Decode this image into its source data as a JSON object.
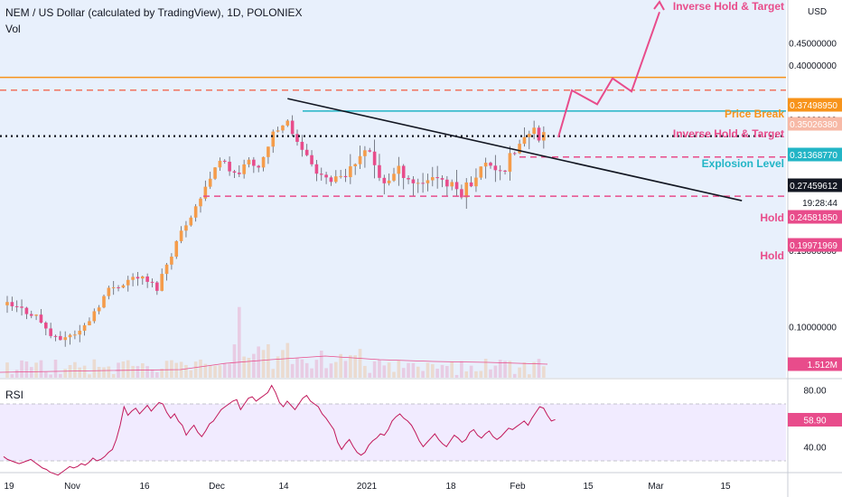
{
  "header": {
    "title": "NEM / US Dollar (calculated by TradingView), 1D, POLONIEX",
    "volume_label": "Vol",
    "currency": "USD",
    "rsi_label": "RSI"
  },
  "chart_data": {
    "type": "candlestick",
    "symbol": "NEM / US Dollar",
    "interval": "1D",
    "exchange": "POLONIEX",
    "price_axis": {
      "ticks": [
        "0.45000000",
        "0.40000000",
        "0.30000000",
        "0.15000000",
        "0.10000000"
      ],
      "scale": "log"
    },
    "time_axis": {
      "ticks": [
        "19",
        "Nov",
        "16",
        "Dec",
        "14",
        "2021",
        "18",
        "Feb",
        "15",
        "Mar",
        "15"
      ]
    },
    "price_labels": [
      {
        "value": "0.37498950",
        "color": "#f7931a",
        "filled": true
      },
      {
        "value": "0.35026380",
        "color": "#f7b9a6",
        "filled": true
      },
      {
        "value": "0.31368770",
        "color": "#22b5c6",
        "filled": true
      },
      {
        "value": "0.27459612",
        "color": "#131722",
        "filled": true
      },
      {
        "value": "19:28:44",
        "color": "#ffffff",
        "filled": false
      },
      {
        "value": "0.24581850",
        "color": "#e84c8b",
        "filled": true
      },
      {
        "value": "0.19971969",
        "color": "#e84c8b",
        "filled": true
      },
      {
        "value": "1.512M",
        "color": "#e84c8b",
        "filled": true
      }
    ],
    "annotations": [
      {
        "text": "Inverse Hold & Target",
        "color": "#e84c8b"
      },
      {
        "text": "Price Break",
        "color": "#f7931a"
      },
      {
        "text": "Inverse Hold & Target",
        "color": "#e84c8b"
      },
      {
        "text": "Explosion Level",
        "color": "#22b5c6"
      },
      {
        "text": "Hold",
        "color": "#e84c8b"
      },
      {
        "text": "Hold",
        "color": "#e84c8b"
      }
    ],
    "horizontal_levels": [
      {
        "price": 0.3749895,
        "style": "solid",
        "color": "#f7931a"
      },
      {
        "price": 0.3502638,
        "style": "dashed",
        "color": "#f0735f"
      },
      {
        "price": 0.3136877,
        "style": "solid",
        "color": "#22b5c6"
      },
      {
        "price": 0.27459612,
        "style": "dotted",
        "color": "#131722"
      },
      {
        "price": 0.2458185,
        "style": "dashed",
        "color": "#e84c8b"
      },
      {
        "price": 0.19971969,
        "style": "dashed",
        "color": "#e84c8b"
      }
    ],
    "trendline": {
      "from": [
        0.335,
        "Dec 16"
      ],
      "to": [
        0.195,
        "Mar 20"
      ],
      "color": "#131722"
    },
    "target_path": {
      "color": "#e84c8b",
      "prices": [
        0.273,
        0.35,
        0.325,
        0.373,
        0.348,
        0.53
      ]
    },
    "colors": {
      "up": "#f59c4a",
      "down": "#e84c8b",
      "background": "#e8f0fc"
    },
    "rsi": {
      "value": "58.90",
      "ticks": [
        "80.00",
        "40.00"
      ],
      "upper_band": 70,
      "lower_band": 30,
      "values": [
        33,
        31,
        30,
        29,
        28,
        29,
        30,
        31,
        29,
        27,
        25,
        24,
        22,
        21,
        20,
        22,
        24,
        26,
        25,
        26,
        28,
        27,
        29,
        32,
        30,
        31,
        33,
        36,
        38,
        45,
        55,
        68,
        62,
        65,
        67,
        63,
        66,
        69,
        65,
        68,
        71,
        70,
        64,
        60,
        63,
        58,
        55,
        48,
        52,
        55,
        50,
        47,
        51,
        56,
        58,
        62,
        66,
        68,
        70,
        72,
        73,
        66,
        70,
        74,
        75,
        72,
        74,
        76,
        78,
        83,
        78,
        71,
        68,
        72,
        69,
        66,
        70,
        74,
        76,
        72,
        70,
        68,
        63,
        60,
        56,
        52,
        43,
        38,
        42,
        45,
        40,
        36,
        34,
        36,
        41,
        44,
        46,
        49,
        48,
        52,
        58,
        61,
        63,
        60,
        58,
        55,
        50,
        44,
        40,
        43,
        46,
        49,
        45,
        42,
        40,
        44,
        48,
        46,
        43,
        45,
        50,
        52,
        48,
        46,
        49,
        51,
        47,
        45,
        47,
        50,
        53,
        52,
        54,
        56,
        58,
        55,
        60,
        64,
        68,
        67,
        62,
        58,
        59
      ]
    }
  }
}
